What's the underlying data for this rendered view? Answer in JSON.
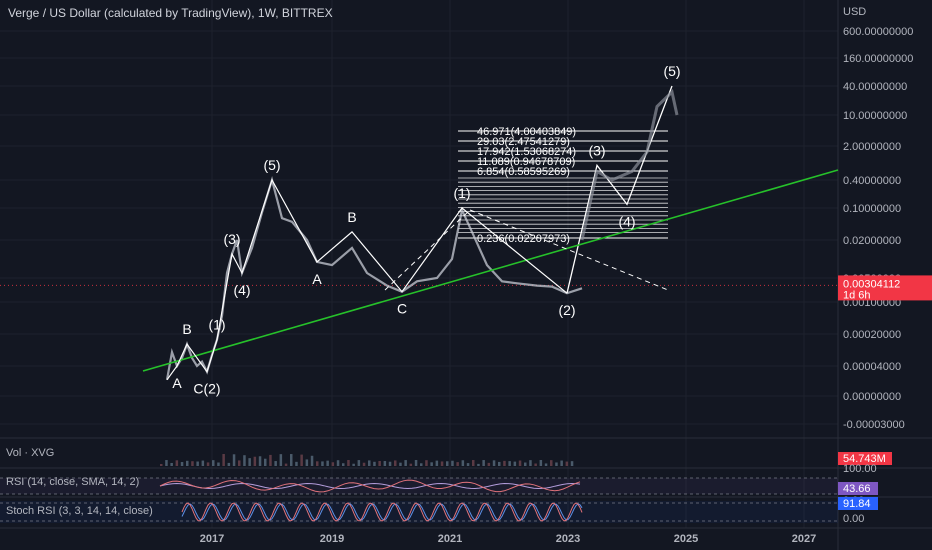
{
  "header": {
    "title": "Verge / US Dollar (calculated by TradingView), 1W, BITTREX",
    "currency": "USD"
  },
  "colors": {
    "background": "#131722",
    "grid": "#1e222d",
    "trendline": "#26c12a",
    "wave_lines": "#ffffff",
    "price_badge": "#f23645",
    "rsi_line": "#e0727a",
    "rsi_sma": "#b39ddb",
    "stoch_k": "#e0727a",
    "stoch_d": "#5c8fe6"
  },
  "chart_data": {
    "type": "line",
    "scale": "log",
    "x_axis": {
      "ticks": [
        "2017",
        "2019",
        "2021",
        "2023",
        "2025",
        "2027"
      ]
    },
    "y_axis": {
      "ticks": [
        "600.00000000",
        "160.00000000",
        "40.00000000",
        "10.00000000",
        "2.00000000",
        "0.40000000",
        "0.10000000",
        "0.02000000",
        "0.00500000",
        "0.00100000",
        "0.00020000",
        "0.00004000",
        "0.00000000",
        "-0.00003000"
      ]
    },
    "last_price": {
      "value": "0.00304112",
      "countdown": "1d 6h"
    },
    "wave_labels": [
      {
        "text": "A",
        "date": "2016-06",
        "side": "below"
      },
      {
        "text": "B",
        "date": "2016-08",
        "side": "above"
      },
      {
        "text": "C(2)",
        "date": "2016-12",
        "side": "below"
      },
      {
        "text": "(1)",
        "date": "2017-02",
        "side": "above"
      },
      {
        "text": "(3)",
        "date": "2017-05",
        "side": "above"
      },
      {
        "text": "(4)",
        "date": "2017-07",
        "side": "below"
      },
      {
        "text": "(5)",
        "date": "2018-01",
        "side": "above"
      },
      {
        "text": "A",
        "date": "2018-10",
        "side": "below"
      },
      {
        "text": "B",
        "date": "2019-05",
        "side": "above"
      },
      {
        "text": "C",
        "date": "2020-03",
        "side": "below"
      },
      {
        "text": "(1)",
        "date": "2021-03",
        "side": "above"
      },
      {
        "text": "(2)",
        "date": "2022-12",
        "side": "below"
      },
      {
        "text": "(3)",
        "date": "2023-06",
        "side": "above"
      },
      {
        "text": "(4)",
        "date": "2023-12",
        "side": "below"
      },
      {
        "text": "(5)",
        "date": "2024-09",
        "side": "above"
      }
    ],
    "fib_levels": [
      {
        "text": "46.971(4.00403849)"
      },
      {
        "text": "29.03(2.47541279)"
      },
      {
        "text": "17.942(1.53068274)"
      },
      {
        "text": "11.089(0.94678709)"
      },
      {
        "text": "6.854(0.58595269)"
      },
      {
        "text": "0.236(0.02207973)"
      }
    ],
    "indicators": {
      "volume": {
        "label": "Vol · XVG",
        "value": "54.743M"
      },
      "rsi": {
        "label": "RSI (14, close, SMA, 14, 2)",
        "value": "43.66",
        "ticks": [
          "100.00",
          "0.00"
        ]
      },
      "stoch_rsi": {
        "label": "Stoch RSI (3, 3, 14, 14, close)",
        "value": "91.84",
        "ticks": [
          "100.00",
          "0.00"
        ]
      }
    }
  }
}
